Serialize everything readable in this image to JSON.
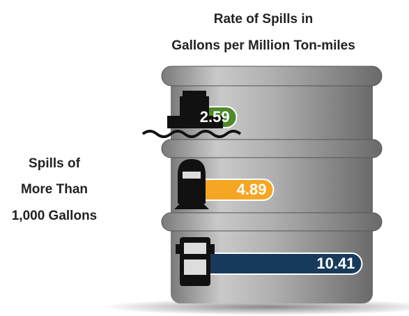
{
  "chart_data": {
    "type": "bar",
    "orientation": "horizontal",
    "title": [
      "Rate of Spills in",
      "Gallons per Million Ton-miles"
    ],
    "label": [
      "Spills of",
      "More Than",
      "1,000 Gallons"
    ],
    "categories": [
      null,
      null,
      null
    ],
    "series": [
      {
        "colors": [
          "#4e8a2c",
          "#f5a623",
          "#173a5c"
        ],
        "values": [
          2.59,
          4.89,
          10.41
        ]
      }
    ]
  }
}
